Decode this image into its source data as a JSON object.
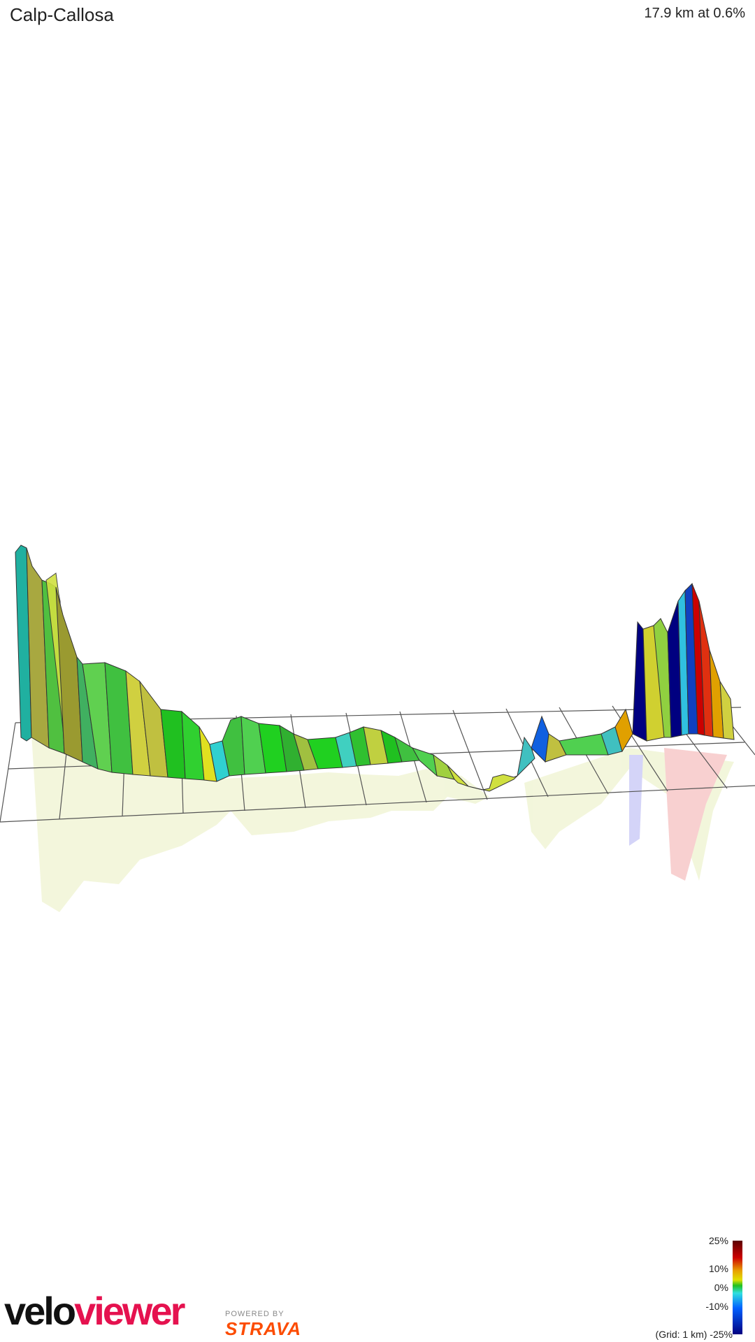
{
  "header": {
    "title": "Calp-Callosa",
    "summary": "17.9 km at 0.6%"
  },
  "legend": {
    "max": "25%",
    "ten": "10%",
    "zero": "0%",
    "minus_ten": "-10%",
    "grid": "(Grid: 1 km) -25%"
  },
  "branding": {
    "logo_part1": "velo",
    "logo_part2": "viewer",
    "powered": "POWERED BY",
    "strava": "STRAVA"
  },
  "colors": {
    "gradient_pos_high": "#cc0000",
    "gradient_pos": "#e0e000",
    "gradient_zero": "#20c020",
    "gradient_neg": "#30e0e0",
    "gradient_neg_high": "#000080",
    "grid": "#555555",
    "brand_pink": "#e5124f",
    "strava_orange": "#fc4c02"
  }
}
